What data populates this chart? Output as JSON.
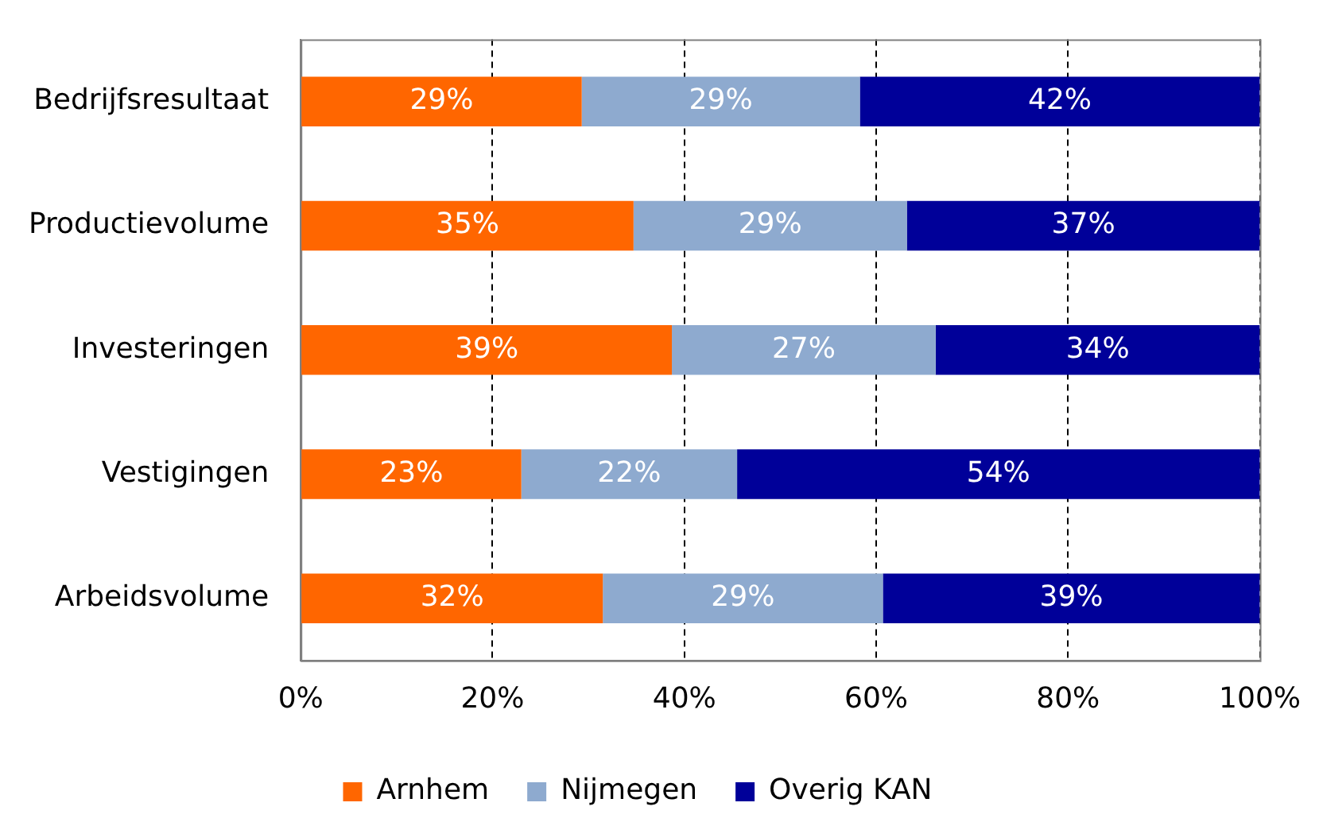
{
  "chart_data": {
    "type": "bar",
    "orientation": "horizontal",
    "stacked": true,
    "categories": [
      "Bedrijfsresultaat",
      "Productievolume",
      "Investeringen",
      "Vestigingen",
      "Arbeidsvolume"
    ],
    "series": [
      {
        "name": "Arnhem",
        "color": "#ff6600",
        "values": [
          29.3,
          34.7,
          38.7,
          23.0,
          31.5
        ],
        "value_labels": [
          "29%",
          "35%",
          "39%",
          "23%",
          "32%"
        ]
      },
      {
        "name": "Nijmegen",
        "color": "#8eaacf",
        "values": [
          29.0,
          28.5,
          27.5,
          22.5,
          29.2
        ],
        "value_labels": [
          "29%",
          "29%",
          "27%",
          "22%",
          "29%"
        ]
      },
      {
        "name": "Overig KAN",
        "color": "#000099",
        "values": [
          41.7,
          36.8,
          33.8,
          54.5,
          39.3
        ],
        "value_labels": [
          "42%",
          "37%",
          "34%",
          "54%",
          "39%"
        ]
      }
    ],
    "xlim": [
      0,
      100
    ],
    "xticks": [
      {
        "value": 0,
        "label": "0%"
      },
      {
        "value": 20,
        "label": "20%"
      },
      {
        "value": 40,
        "label": "40%"
      },
      {
        "value": 60,
        "label": "60%"
      },
      {
        "value": 80,
        "label": "80%"
      },
      {
        "value": 100,
        "label": "100%"
      }
    ],
    "grid": "x",
    "legend": "bottom"
  }
}
